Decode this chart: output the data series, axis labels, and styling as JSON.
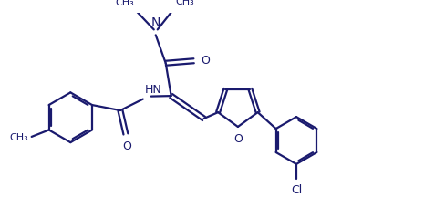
{
  "bg_color": "#ffffff",
  "line_color": "#1a1a6e",
  "line_width": 1.6,
  "font_size": 9,
  "figsize": [
    4.89,
    2.39
  ],
  "dpi": 100,
  "xlim": [
    0,
    9.5
  ],
  "ylim": [
    0,
    4.5
  ]
}
